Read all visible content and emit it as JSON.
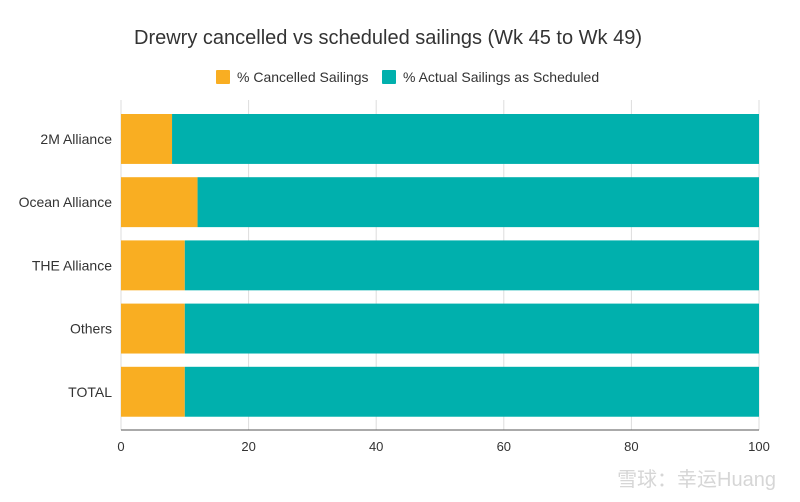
{
  "chart_data": {
    "type": "bar",
    "orientation": "horizontal",
    "stacked": true,
    "title": "Drewry cancelled vs scheduled sailings (Wk 45 to Wk 49)",
    "categories": [
      "2M Alliance",
      "Ocean Alliance",
      "THE Alliance",
      "Others",
      "TOTAL"
    ],
    "series": [
      {
        "name": "% Cancelled Sailings",
        "color": "#F9AE22",
        "values": [
          8,
          12,
          10,
          10,
          10
        ]
      },
      {
        "name": "% Actual Sailings as Scheduled",
        "color": "#00B0AD",
        "values": [
          92,
          88,
          90,
          90,
          90
        ]
      }
    ],
    "xlim": [
      0,
      100
    ],
    "xticks": [
      0,
      20,
      40,
      60,
      80,
      100
    ],
    "grid": true,
    "legend_position": "top-center"
  },
  "watermark": {
    "text": "雪球：幸运Huang"
  }
}
